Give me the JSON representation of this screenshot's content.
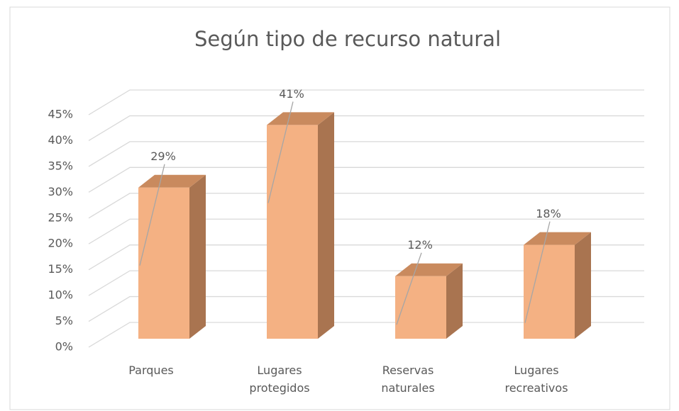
{
  "chart_data": {
    "type": "bar3d",
    "title": "Según tipo de recurso natural",
    "categories": [
      "Parques",
      "Lugares protegidos",
      "Reservas naturales",
      "Lugares recreativos"
    ],
    "values": [
      29,
      41,
      12,
      18
    ],
    "value_labels": [
      "29%",
      "41%",
      "12%",
      "18%"
    ],
    "color": "#f4b183",
    "ylim": [
      0,
      45
    ],
    "yticks": [
      {
        "value": 0,
        "label": "0%"
      },
      {
        "value": 5,
        "label": "5%"
      },
      {
        "value": 10,
        "label": "10%"
      },
      {
        "value": 15,
        "label": "15%"
      },
      {
        "value": 20,
        "label": "20%"
      },
      {
        "value": 25,
        "label": "25%"
      },
      {
        "value": 30,
        "label": "30%"
      },
      {
        "value": 35,
        "label": "35%"
      },
      {
        "value": 40,
        "label": "40%"
      },
      {
        "value": 45,
        "label": "45%"
      }
    ],
    "grid": true
  }
}
